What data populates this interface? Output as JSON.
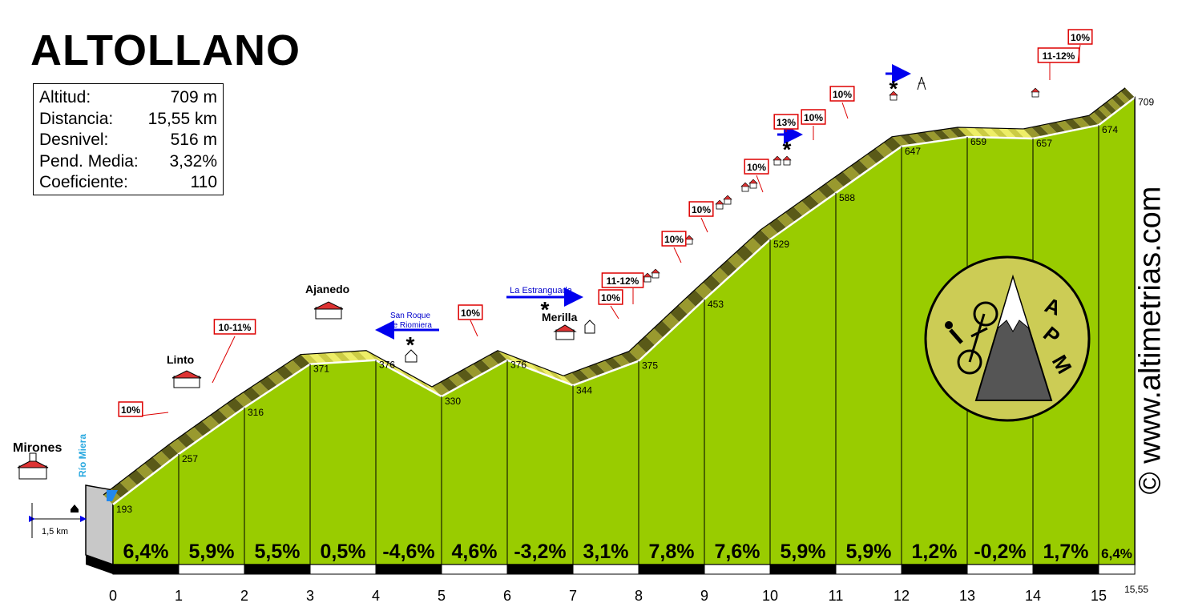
{
  "chart_data": {
    "type": "area",
    "title": "ALTOLLANO",
    "xlabel": "",
    "ylabel": "",
    "x_ticks": [
      "0",
      "1",
      "2",
      "3",
      "4",
      "5",
      "6",
      "7",
      "8",
      "9",
      "10",
      "11",
      "12",
      "13",
      "14",
      "15"
    ],
    "x_end_label": "15,55",
    "profile": {
      "km": [
        0,
        1,
        2,
        3,
        4,
        5,
        6,
        7,
        8,
        9,
        10,
        11,
        12,
        13,
        14,
        15,
        15.55
      ],
      "altitude": [
        193,
        257,
        316,
        371,
        376,
        330,
        376,
        344,
        375,
        453,
        529,
        588,
        647,
        659,
        657,
        674,
        709
      ]
    },
    "altitude_labels": [
      "193",
      "257",
      "316",
      "371",
      "376",
      "330",
      "376",
      "344",
      "375",
      "453",
      "529",
      "588",
      "647",
      "659",
      "657",
      "674",
      "709"
    ],
    "segment_gradients": [
      "6,4%",
      "5,9%",
      "5,5%",
      "0,5%",
      "-4,6%",
      "4,6%",
      "-3,2%",
      "3,1%",
      "7,8%",
      "7,6%",
      "5,9%",
      "5,9%",
      "1,2%",
      "-0,2%",
      "1,7%",
      "6,4%"
    ],
    "ramp_labels": [
      "10%",
      "10-11%",
      "10%",
      "10%",
      "11-12%",
      "10%",
      "10%",
      "10%",
      "13%",
      "10%",
      "10%",
      "11-12%",
      "10%"
    ],
    "places": [
      "Mirones",
      "Linto",
      "Ajanedo",
      "Merilla"
    ],
    "annotations": {
      "river": "Río Miera",
      "san_roque": "San Roque de Riomiera",
      "estranguada": "La Estranguada",
      "approach_distance": "1,5 km"
    }
  },
  "stats": {
    "rows": [
      {
        "label": "Altitud:",
        "value": "709 m"
      },
      {
        "label": "Distancia:",
        "value": "15,55 km"
      },
      {
        "label": "Desnivel:",
        "value": "516 m"
      },
      {
        "label": "Pend. Media:",
        "value": "3,32%"
      },
      {
        "label": "Coeficiente:",
        "value": "110"
      }
    ]
  },
  "logo": {
    "letters": [
      "A",
      "P",
      "M"
    ]
  },
  "watermark": "© www.altimetrias.com",
  "colors": {
    "area": "#99cc00",
    "road_dark": "#5a5a18",
    "road_mid": "#99992e",
    "road_light": "#eeee66",
    "road_steep": "#a0522d",
    "ramp_box": "#dd0000",
    "arrow": "#0000ee",
    "logo_bg": "#cccc55"
  }
}
